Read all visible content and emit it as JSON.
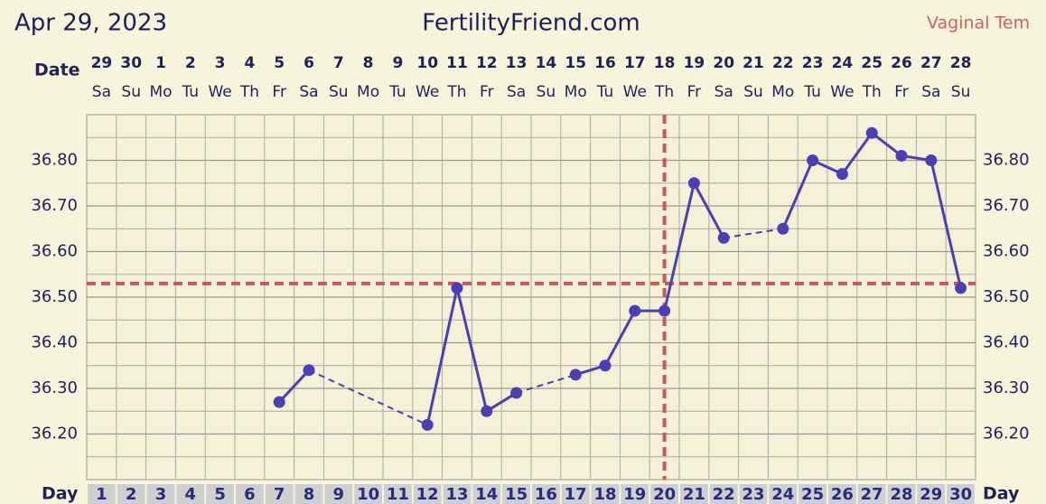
{
  "chart_data": {
    "type": "line",
    "title": "FertilityFriend.com",
    "chart_date": "Apr 29, 2023",
    "temp_method": "Vaginal Tem",
    "date_row_label": "Date",
    "day_row_label": "Day",
    "categories": [
      1,
      2,
      3,
      4,
      5,
      6,
      7,
      8,
      9,
      10,
      11,
      12,
      13,
      14,
      15,
      16,
      17,
      18,
      19,
      20,
      21,
      22,
      23,
      24,
      25,
      26,
      27,
      28,
      29,
      30
    ],
    "dates": [
      29,
      30,
      1,
      2,
      3,
      4,
      5,
      6,
      7,
      8,
      9,
      10,
      11,
      12,
      13,
      14,
      15,
      16,
      17,
      18,
      19,
      20,
      21,
      22,
      23,
      24,
      25,
      26,
      27,
      28
    ],
    "weekdays": [
      "Sa",
      "Su",
      "Mo",
      "Tu",
      "We",
      "Th",
      "Fr",
      "Sa",
      "Su",
      "Mo",
      "Tu",
      "We",
      "Th",
      "Fr",
      "Sa",
      "Su",
      "Mo",
      "Tu",
      "We",
      "Th",
      "Fr",
      "Sa",
      "Su",
      "Mo",
      "Tu",
      "We",
      "Th",
      "Fr",
      "Sa",
      "Su"
    ],
    "values": [
      null,
      null,
      null,
      null,
      null,
      null,
      36.27,
      36.34,
      null,
      null,
      null,
      36.22,
      36.52,
      36.25,
      36.29,
      null,
      36.33,
      36.35,
      36.47,
      36.47,
      36.75,
      36.63,
      null,
      36.65,
      36.8,
      36.77,
      36.86,
      36.81,
      36.8,
      36.52
    ],
    "color": "#4a3fb8",
    "coverline": 36.53,
    "ovulation_day": 20,
    "marker_color": "#c45a5a",
    "ylim": [
      36.1,
      36.9
    ],
    "yticks": [
      {
        "value": 36.2,
        "label": "36.20"
      },
      {
        "value": 36.3,
        "label": "36.30"
      },
      {
        "value": 36.4,
        "label": "36.40"
      },
      {
        "value": 36.5,
        "label": "36.50"
      },
      {
        "value": 36.6,
        "label": "36.60"
      },
      {
        "value": 36.7,
        "label": "36.70"
      },
      {
        "value": 36.8,
        "label": "36.80"
      }
    ],
    "grid": true
  }
}
